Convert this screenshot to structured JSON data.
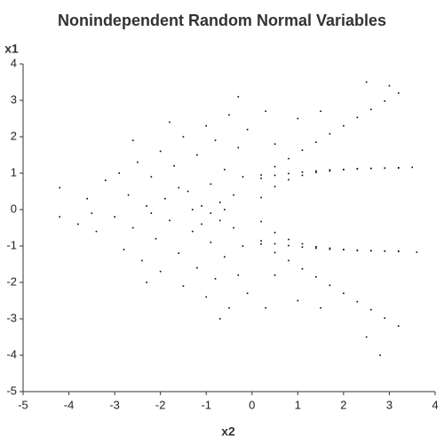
{
  "chart_data": {
    "type": "scatter",
    "title": "Nonindependent Random Normal Variables",
    "xlabel": "x2",
    "ylabel": "x1",
    "color": "#000000",
    "xlim": [
      -5,
      4
    ],
    "ylim": [
      -5,
      4
    ],
    "xticks": [
      -5,
      -4,
      -3,
      -2,
      -1,
      0,
      1,
      2,
      3,
      4
    ],
    "yticks": [
      -5,
      -4,
      -3,
      -2,
      -1,
      0,
      1,
      2,
      3,
      4
    ],
    "grid": false,
    "x": [
      -4.2,
      -4.2,
      -3.8,
      -3.6,
      -3.4,
      -3.2,
      -3.0,
      -2.9,
      -2.8,
      -2.7,
      -2.6,
      -2.5,
      -2.4,
      -2.3,
      -2.2,
      -2.1,
      -2.0,
      -2.0,
      -1.9,
      -1.8,
      -1.7,
      -1.6,
      -1.5,
      -1.5,
      -1.4,
      -1.3,
      -1.2,
      -1.2,
      -1.1,
      -1.0,
      -1.0,
      -0.9,
      -0.9,
      -0.8,
      -0.8,
      -0.7,
      -0.7,
      -0.6,
      -0.6,
      -0.5,
      -0.5,
      -0.4,
      -0.4,
      -0.3,
      -0.3,
      -0.2,
      -0.2,
      -0.1,
      -0.1,
      -1.3,
      -1.6,
      -0.9,
      -1.1,
      -0.6,
      -2.2,
      -3.5,
      -1.8,
      -0.3,
      -0.7,
      -2.6,
      -2.3,
      0.2,
      0.5,
      0.8,
      1.1,
      1.4,
      1.7,
      2.0,
      2.3,
      2.6,
      2.9,
      3.2,
      0.2,
      0.5,
      0.8,
      1.1,
      1.4,
      1.7,
      2.0,
      2.3,
      2.6,
      2.9,
      3.2,
      0.2,
      0.5,
      0.8,
      1.1,
      1.4,
      1.7,
      2.0,
      2.3,
      2.6,
      2.9,
      3.2,
      0.2,
      0.5,
      0.8,
      1.1,
      1.4,
      1.7,
      2.0,
      2.3,
      2.6,
      2.9,
      3.2,
      0.2,
      0.5,
      0.8,
      1.1,
      1.4,
      1.7,
      2.0,
      2.3,
      2.6,
      2.9,
      3.2,
      0.2,
      0.5,
      0.8,
      1.1,
      1.4,
      1.7,
      2.0,
      2.3,
      2.6,
      2.9,
      3.2,
      0.5,
      1.0,
      1.5,
      2.5,
      0.3,
      0.5,
      1.0,
      1.5,
      2.5,
      0.3,
      3.0,
      2.8,
      3.5,
      3.6
    ],
    "values": [
      0.6,
      -0.2,
      -0.4,
      0.3,
      -0.6,
      0.8,
      -0.2,
      1.0,
      -1.1,
      0.4,
      -0.5,
      1.3,
      -1.4,
      0.1,
      0.9,
      -0.8,
      1.6,
      -1.7,
      0.3,
      -0.3,
      1.2,
      -1.2,
      2.0,
      -2.1,
      0.5,
      -0.6,
      1.5,
      -1.6,
      0.1,
      2.3,
      -2.4,
      0.7,
      -0.9,
      1.9,
      -1.9,
      0.2,
      -0.3,
      1.1,
      -1.3,
      2.6,
      -2.7,
      0.4,
      -0.5,
      1.7,
      -1.8,
      0.9,
      -1.0,
      2.2,
      -2.3,
      0.0,
      0.6,
      -0.1,
      -0.4,
      0.0,
      -0.1,
      -0.1,
      2.4,
      3.1,
      -3.0,
      1.9,
      -2.0,
      0.95,
      1.18,
      1.4,
      1.63,
      1.85,
      2.08,
      2.3,
      2.53,
      2.75,
      2.98,
      3.2,
      -0.95,
      -1.18,
      -1.4,
      -1.63,
      -1.85,
      -2.08,
      -2.3,
      -2.53,
      -2.75,
      -2.98,
      -3.2,
      0.33,
      0.63,
      0.82,
      0.94,
      1.02,
      1.06,
      1.1,
      1.12,
      1.13,
      1.14,
      1.14,
      -0.33,
      -0.63,
      -0.82,
      -0.94,
      -1.02,
      -1.06,
      -1.1,
      -1.12,
      -1.13,
      -1.14,
      -1.14,
      0.86,
      0.94,
      0.99,
      1.03,
      1.06,
      1.09,
      1.1,
      1.12,
      1.13,
      1.14,
      1.15,
      -0.86,
      -0.94,
      -0.99,
      -1.03,
      -1.06,
      -1.09,
      -1.1,
      -1.12,
      -1.13,
      -1.14,
      -1.15,
      1.8,
      2.5,
      2.7,
      3.5,
      2.7,
      -1.8,
      -2.5,
      -2.7,
      -3.5,
      -2.7,
      3.4,
      -4.0,
      1.16,
      -1.17
    ]
  }
}
